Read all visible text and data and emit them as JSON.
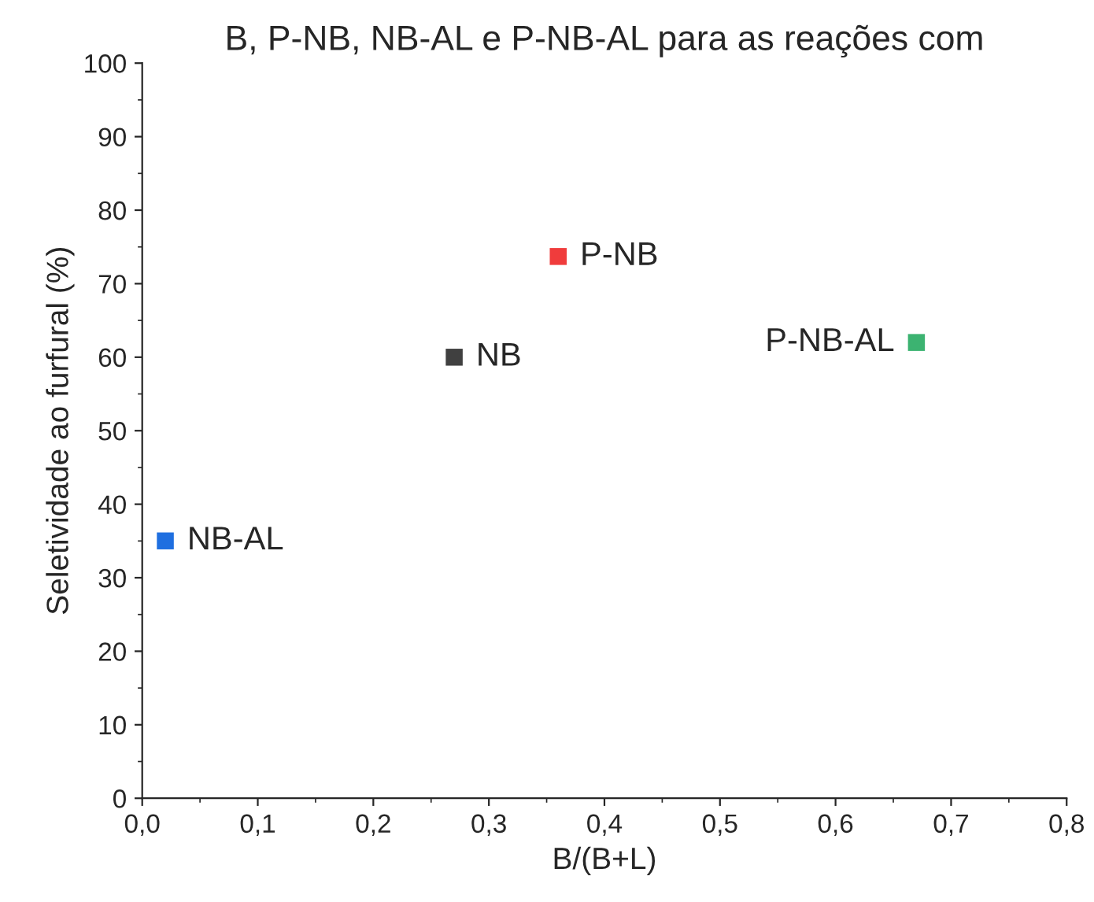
{
  "chart_data": {
    "type": "scatter",
    "title": "B, P-NB, NB-AL e P-NB-AL para as reações com",
    "xlabel": "B/(B+L)",
    "ylabel": "Seletividade ao furfural (%)",
    "series": [
      {
        "name": "NB-AL",
        "color": "#1f6fe0",
        "x": [
          0.02
        ],
        "values": [
          35
        ]
      },
      {
        "name": "NB",
        "color": "#404040",
        "x": [
          0.27
        ],
        "values": [
          60
        ]
      },
      {
        "name": "P-NB",
        "color": "#f03c3c",
        "x": [
          0.36
        ],
        "values": [
          73.7
        ]
      },
      {
        "name": "P-NB-AL",
        "color": "#3cb371",
        "x": [
          0.67
        ],
        "values": [
          62
        ]
      }
    ],
    "marker": "square",
    "xlim": [
      0,
      0.8
    ],
    "ylim": [
      0,
      100
    ],
    "xticks": [
      {
        "value": 0,
        "label": "0,0"
      },
      {
        "value": 0.1,
        "label": "0,1"
      },
      {
        "value": 0.2,
        "label": "0,2"
      },
      {
        "value": 0.3,
        "label": "0,3"
      },
      {
        "value": 0.4,
        "label": "0,4"
      },
      {
        "value": 0.5,
        "label": "0,5"
      },
      {
        "value": 0.6,
        "label": "0,6"
      },
      {
        "value": 0.7,
        "label": "0,7"
      },
      {
        "value": 0.8,
        "label": "0,8"
      }
    ],
    "yticks": [
      0,
      10,
      20,
      30,
      40,
      50,
      60,
      70,
      80,
      90,
      100
    ],
    "grid": false
  }
}
